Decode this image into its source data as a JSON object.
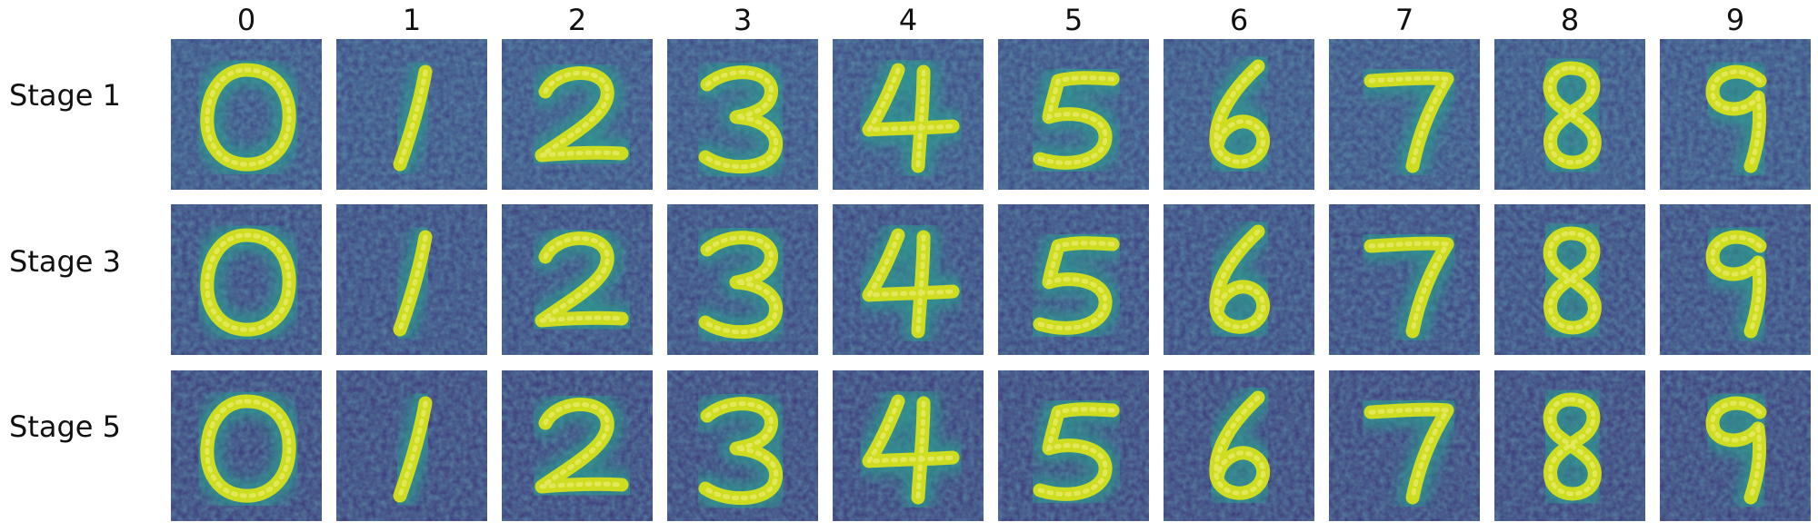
{
  "columns": [
    "0",
    "1",
    "2",
    "3",
    "4",
    "5",
    "6",
    "7",
    "8",
    "9"
  ],
  "rows": [
    "Stage 1",
    "Stage 3",
    "Stage 5"
  ],
  "colormap": {
    "name": "viridis",
    "background": "#3b4e8a",
    "dark": "#3a1f67",
    "mid": "#2a9d8f",
    "bright": "#d8e21a"
  }
}
